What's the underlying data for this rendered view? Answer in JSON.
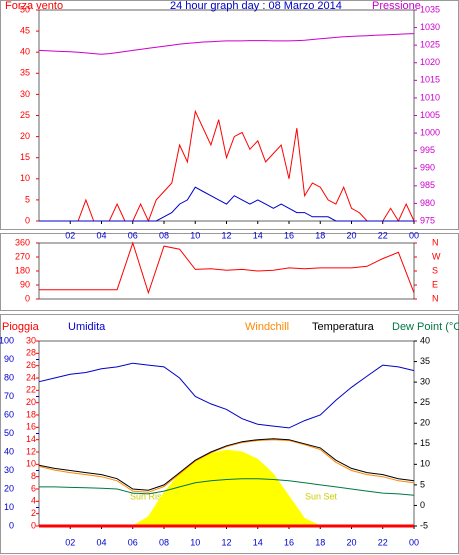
{
  "chart_data": [
    {
      "type": "line",
      "title": "24 hour graph day : 08 Marzo 2014",
      "ylabel": "Forza vento",
      "y2label": "Pressione",
      "x": [
        0,
        0.5,
        1,
        1.5,
        2,
        2.5,
        3,
        3.5,
        4,
        4.5,
        5,
        5.5,
        6,
        6.5,
        7,
        7.5,
        8,
        8.5,
        9,
        9.5,
        10,
        10.5,
        11,
        11.5,
        12,
        12.5,
        13,
        13.5,
        14,
        14.5,
        15,
        15.5,
        16,
        16.5,
        17,
        17.5,
        18,
        18.5,
        19,
        19.5,
        20,
        20.5,
        21,
        21.5,
        22,
        22.5,
        23,
        23.5,
        24
      ],
      "xlim": [
        0,
        24
      ],
      "xticks": [
        {
          "value": 2,
          "label": "02"
        },
        {
          "value": 4,
          "label": "04"
        },
        {
          "value": 6,
          "label": "06"
        },
        {
          "value": 8,
          "label": "08"
        },
        10,
        12,
        14,
        16,
        18,
        20,
        22,
        {
          "value": 24,
          "label": "00"
        }
      ],
      "ylim": [
        0,
        50
      ],
      "yticks": [
        0,
        5,
        10,
        15,
        20,
        25,
        30,
        35,
        40,
        45,
        50
      ],
      "y2lim": [
        975,
        1035
      ],
      "y2ticks": [
        975,
        980,
        985,
        990,
        995,
        1000,
        1005,
        1010,
        1015,
        1020,
        1025,
        1030,
        1035
      ],
      "series": [
        {
          "color": "#ff0000",
          "values": [
            0,
            0,
            0,
            0,
            0,
            0,
            5,
            0,
            0,
            0,
            4,
            0,
            0,
            4,
            0,
            5,
            7,
            9,
            18,
            14,
            26,
            22,
            18,
            24,
            15,
            20,
            21,
            17,
            19,
            14,
            16,
            18,
            10,
            22,
            6,
            9,
            8,
            5,
            4,
            8,
            3,
            2,
            0,
            0,
            0,
            3,
            0,
            4,
            0
          ]
        },
        {
          "color": "#0000cc",
          "values": [
            0,
            0,
            0,
            0,
            0,
            0,
            0,
            0,
            0,
            0,
            0,
            0,
            0,
            0,
            0,
            0,
            1,
            2,
            4,
            5,
            8,
            7,
            6,
            5,
            4,
            6,
            5,
            4,
            5,
            4,
            3,
            4,
            3,
            2,
            2,
            1,
            1,
            1,
            0,
            0,
            0,
            0,
            0,
            0,
            0,
            0,
            0,
            0,
            0
          ]
        },
        {
          "color": "#cc00cc",
          "axis": "y2",
          "values": [
            1023.5,
            1023.4,
            1023.3,
            1023.2,
            1023.1,
            1023,
            1022.8,
            1022.6,
            1022.4,
            1022.6,
            1022.9,
            1023.2,
            1023.5,
            1023.8,
            1024.1,
            1024.4,
            1024.7,
            1025,
            1025.3,
            1025.5,
            1025.7,
            1025.9,
            1026,
            1026.1,
            1026.2,
            1026.2,
            1026.2,
            1026.3,
            1026.3,
            1026.3,
            1026.2,
            1026.2,
            1026.2,
            1026.3,
            1026.4,
            1026.6,
            1026.8,
            1027,
            1027.2,
            1027.4,
            1027.5,
            1027.6,
            1027.7,
            1027.8,
            1027.9,
            1028,
            1028.1,
            1028.2,
            1028.3
          ]
        }
      ]
    },
    {
      "type": "line",
      "x": [
        0,
        1,
        2,
        3,
        4,
        5,
        6,
        7,
        8,
        9,
        10,
        11,
        12,
        13,
        14,
        15,
        16,
        17,
        18,
        19,
        20,
        21,
        22,
        23,
        24
      ],
      "xlim": [
        0,
        24
      ],
      "ylim": [
        0,
        360
      ],
      "yticks": [
        0,
        90,
        180,
        270,
        360
      ],
      "y2lim": [
        0,
        360
      ],
      "y2ticks": [
        {
          "value": 0,
          "label": "N"
        },
        {
          "value": 90,
          "label": "E"
        },
        {
          "value": 180,
          "label": "S"
        },
        {
          "value": 270,
          "label": "W"
        },
        {
          "value": 360,
          "label": "N"
        }
      ],
      "series": [
        {
          "color": "#ff0000",
          "values": [
            60,
            60,
            60,
            60,
            60,
            60,
            360,
            40,
            340,
            320,
            190,
            195,
            185,
            190,
            180,
            185,
            200,
            195,
            200,
            200,
            200,
            210,
            260,
            300,
            40
          ]
        }
      ]
    },
    {
      "type": "line",
      "ylabel": "Umidita",
      "y2label": "Temperatura",
      "y3label": "Pioggia",
      "annotations": [
        "Sun Rise",
        "Sun Set"
      ],
      "x": [
        0,
        1,
        2,
        3,
        4,
        5,
        6,
        7,
        8,
        9,
        10,
        11,
        12,
        13,
        14,
        15,
        16,
        17,
        18,
        19,
        20,
        21,
        22,
        23,
        24
      ],
      "xlim": [
        0,
        24
      ],
      "xticks": [
        {
          "value": 2,
          "label": "02"
        },
        {
          "value": 4,
          "label": "04"
        },
        {
          "value": 6,
          "label": "06"
        },
        {
          "value": 8,
          "label": "08"
        },
        10,
        12,
        14,
        16,
        18,
        20,
        22,
        {
          "value": 24,
          "label": "00"
        }
      ],
      "ylim": [
        0,
        100
      ],
      "yticks": [
        0,
        10,
        20,
        30,
        40,
        50,
        60,
        70,
        80,
        90,
        100
      ],
      "y2lim": [
        -5,
        40
      ],
      "y2ticks": [
        -5,
        0,
        5,
        10,
        15,
        20,
        25,
        30,
        35,
        40
      ],
      "y3lim": [
        0,
        30
      ],
      "y3ticks": [
        0,
        2,
        4,
        6,
        8,
        10,
        12,
        14,
        16,
        18,
        20,
        22,
        24,
        26,
        28,
        30
      ],
      "series": [
        {
          "color": "#ffff00",
          "fill": true,
          "values": [
            0,
            0,
            0,
            0,
            0,
            0,
            0,
            5,
            18,
            28,
            35,
            39,
            41,
            40,
            36,
            28,
            16,
            4,
            0,
            0,
            0,
            0,
            0,
            0,
            0
          ]
        },
        {
          "name": "Umidita",
          "color": "#0000cc",
          "values": [
            78,
            80,
            82,
            83,
            85,
            86,
            88,
            87,
            86,
            80,
            70,
            66,
            63,
            58,
            55,
            54,
            53,
            57,
            60,
            68,
            75,
            81,
            87,
            86,
            84
          ]
        },
        {
          "name": "Dew Point (°C",
          "color": "#007744",
          "axis": "y2",
          "values": [
            4.5,
            4.5,
            4.4,
            4.3,
            4.2,
            4,
            3,
            2.8,
            3.5,
            4.5,
            5.5,
            6,
            6.3,
            6.5,
            6.5,
            6.3,
            6,
            5.5,
            5,
            4.5,
            4,
            3.5,
            3,
            2.8,
            2.5
          ]
        },
        {
          "name": "Windchill",
          "color": "#ff8800",
          "axis": "y2",
          "values": [
            9.5,
            8.6,
            8,
            7.5,
            7,
            6,
            3.5,
            3.2,
            4.6,
            7.7,
            10.8,
            12.8,
            14.3,
            15.3,
            15.8,
            16,
            15.8,
            14.8,
            13.6,
            10.5,
            8.5,
            7.5,
            7,
            6,
            5.5
          ]
        },
        {
          "name": "Temperatura",
          "color": "#000000",
          "axis": "y2",
          "values": [
            9.8,
            9,
            8.5,
            8,
            7.5,
            6.5,
            4,
            3.7,
            5,
            8,
            11,
            13,
            14.5,
            15.5,
            16,
            16.2,
            16,
            15,
            14,
            11,
            9,
            8,
            7.5,
            6.5,
            6
          ]
        },
        {
          "name": "Pioggia",
          "color": "#ff0000",
          "axis": "y3",
          "values": [
            0,
            0,
            0,
            0,
            0,
            0,
            0,
            0,
            0,
            0,
            0,
            0,
            0,
            0,
            0,
            0,
            0,
            0,
            0,
            0,
            0,
            0,
            0,
            0,
            0
          ]
        }
      ]
    }
  ]
}
